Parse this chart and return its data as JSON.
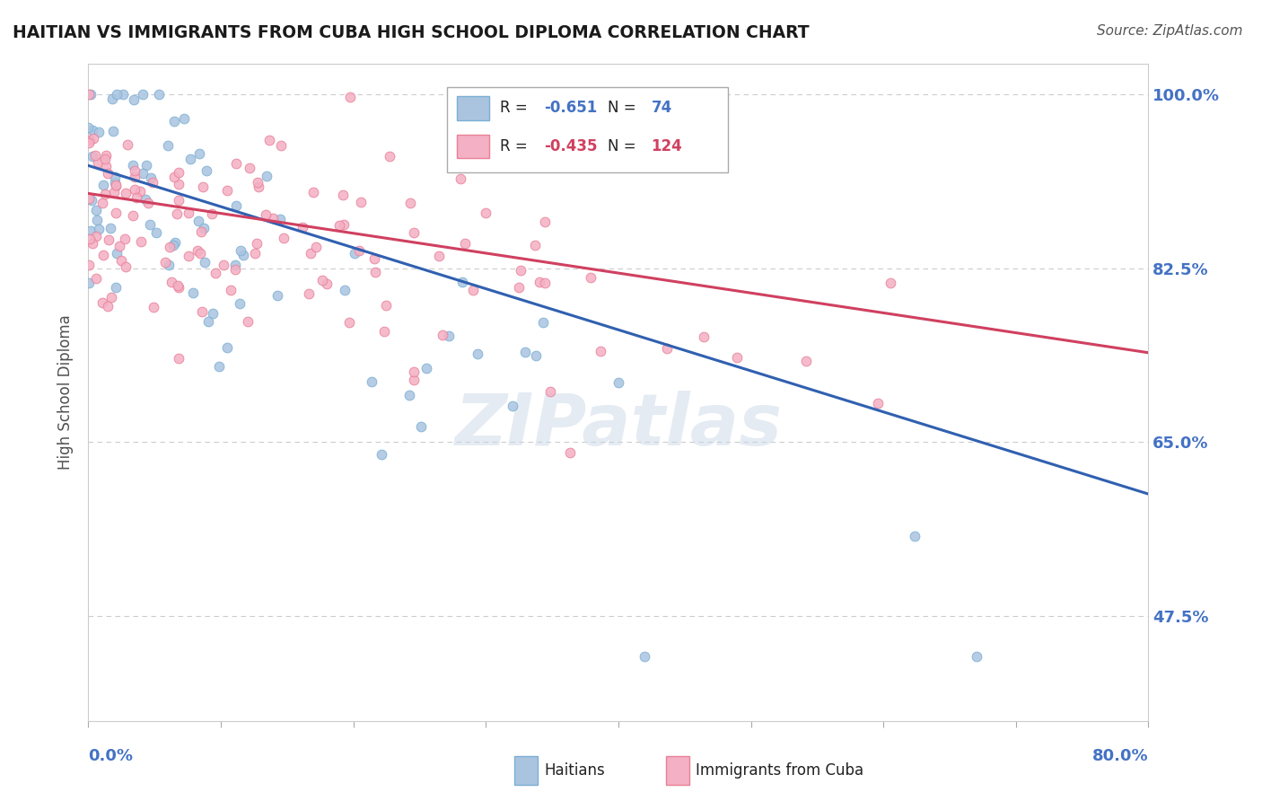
{
  "title": "HAITIAN VS IMMIGRANTS FROM CUBA HIGH SCHOOL DIPLOMA CORRELATION CHART",
  "source": "Source: ZipAtlas.com",
  "ylabel": "High School Diploma",
  "x_min": 0.0,
  "x_max": 0.8,
  "y_min": 0.37,
  "y_max": 1.03,
  "y_ticks": [
    0.475,
    0.65,
    0.825,
    1.0
  ],
  "y_tick_labels": [
    "47.5%",
    "65.0%",
    "82.5%",
    "100.0%"
  ],
  "x_ticks": [
    0.0,
    0.1,
    0.2,
    0.3,
    0.4,
    0.5,
    0.6,
    0.7,
    0.8
  ],
  "series1_label": "Haitians",
  "series1_color": "#aac4e0",
  "series1_edge": "#7aafd4",
  "series1_line_color": "#3060b0",
  "series1_R": -0.651,
  "series1_N": 74,
  "series2_label": "Immigrants from Cuba",
  "series2_color": "#f4b0c4",
  "series2_edge": "#e88098",
  "series2_line_color": "#d04060",
  "series2_R": -0.435,
  "series2_N": 124,
  "legend_R_val1": "-0.651",
  "legend_N_val1": "74",
  "legend_R_val2": "-0.435",
  "legend_N_val2": "124",
  "watermark": "ZIPatlas",
  "background_color": "#ffffff",
  "grid_color": "#cccccc",
  "title_color": "#1a1a1a",
  "axis_label_color": "#4472c4",
  "haitian_intercept": 0.925,
  "haitian_slope": -0.62,
  "cuba_intercept": 0.895,
  "cuba_slope": -0.22,
  "seed1": 7,
  "seed2": 13
}
